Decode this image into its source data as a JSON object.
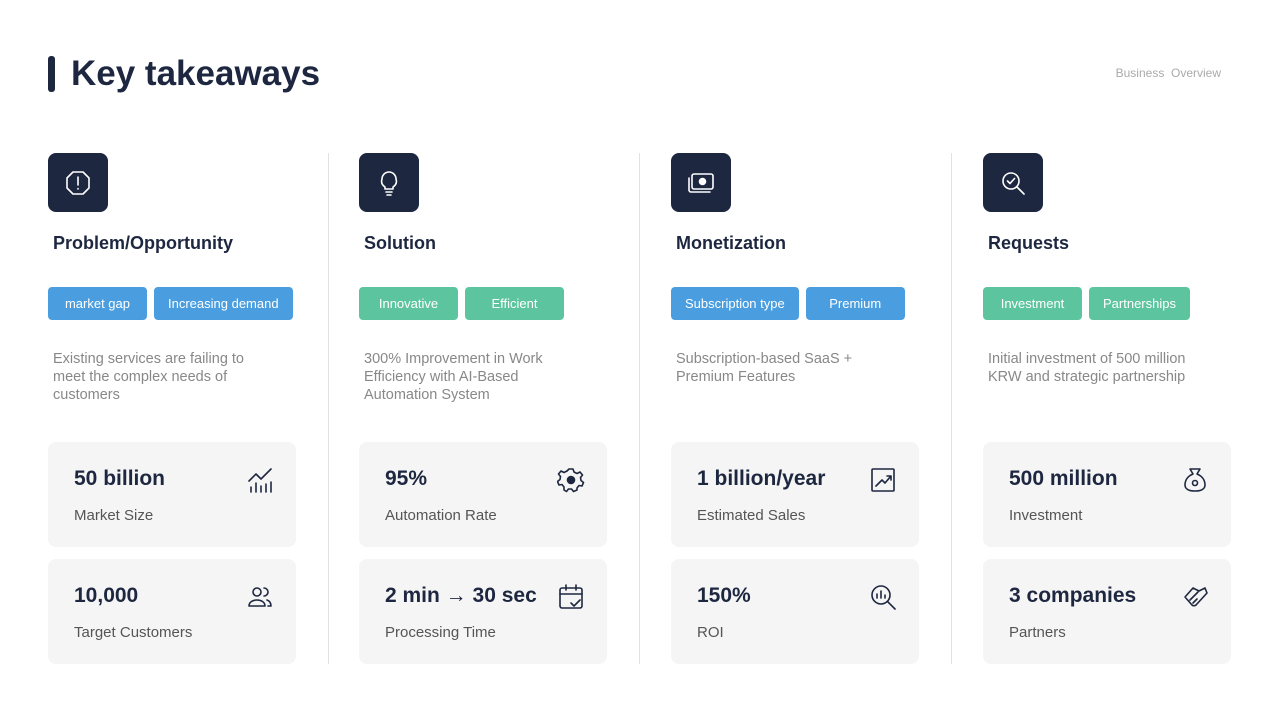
{
  "header": {
    "title": "Key takeaways",
    "tag": "Business  Overview"
  },
  "columns": [
    {
      "title": "Problem/Opportunity",
      "tags": [
        {
          "text": "market gap",
          "color": "#4a9ee0"
        },
        {
          "text": "Increasing demand",
          "color": "#4a9ee0"
        }
      ],
      "description": "Existing services are failing to meet the complex needs of customers",
      "stats": [
        {
          "value": "50 billion",
          "label": "Market Size"
        },
        {
          "value": "10,000",
          "label": "Target Customers"
        }
      ]
    },
    {
      "title": "Solution",
      "tags": [
        {
          "text": "Innovative",
          "color": "#5cc5a0"
        },
        {
          "text": "Efficient",
          "color": "#5cc5a0"
        }
      ],
      "description": "300% Improvement in Work Efficiency with AI-Based Automation System",
      "stats": [
        {
          "value": "95%",
          "label": "Automation Rate"
        },
        {
          "value": "2 min → 30 sec",
          "label": "Processing Time"
        }
      ]
    },
    {
      "title": "Monetization",
      "tags": [
        {
          "text": "Subscription type",
          "color": "#4a9ee0"
        },
        {
          "text": "Premium",
          "color": "#4a9ee0"
        }
      ],
      "description": "Subscription-based SaaS + Premium Features",
      "stats": [
        {
          "value": "1 billion/year",
          "label": "Estimated Sales"
        },
        {
          "value": "150%",
          "label": "ROI"
        }
      ]
    },
    {
      "title": "Requests",
      "tags": [
        {
          "text": "Investment",
          "color": "#5cc5a0"
        },
        {
          "text": "Partnerships",
          "color": "#5cc5a0"
        }
      ],
      "description": "Initial investment of 500 million KRW and strategic partnership",
      "stats": [
        {
          "value": "500 million",
          "label": "Investment"
        },
        {
          "value": "3 companies",
          "label": "Partners"
        }
      ]
    }
  ]
}
